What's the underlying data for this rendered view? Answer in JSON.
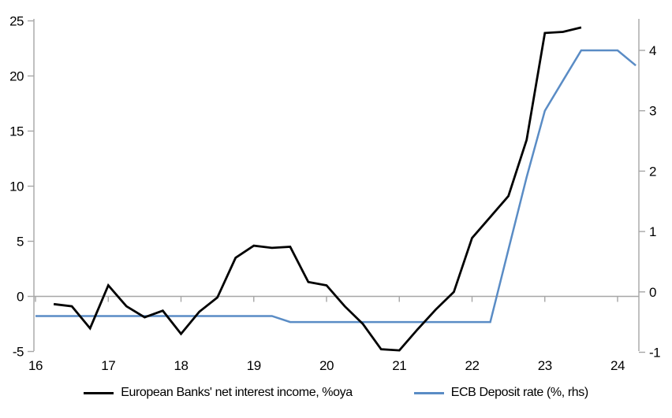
{
  "chart_data": {
    "type": "line",
    "title": "",
    "grid": "zero-line-only",
    "legend_position": "bottom",
    "x_axis": {
      "ticks": [
        16,
        17,
        18,
        19,
        20,
        21,
        22,
        23,
        24
      ],
      "range": [
        16,
        24.3
      ],
      "tick_style": "on-zero-line, labels-low"
    },
    "y_left": {
      "ticks": [
        -5,
        0,
        5,
        10,
        15,
        20,
        25
      ],
      "range": [
        -5,
        25.2
      ]
    },
    "y_right": {
      "ticks": [
        -1,
        0,
        1,
        2,
        3,
        4
      ],
      "range": [
        -1,
        4.5
      ]
    },
    "series": [
      {
        "name": "European Banks' net interest income, %oya",
        "axis": "left",
        "color": "#000000",
        "x": [
          16.25,
          16.5,
          16.75,
          17.0,
          17.25,
          17.5,
          17.75,
          18.0,
          18.25,
          18.5,
          18.75,
          19.0,
          19.25,
          19.5,
          19.75,
          20.0,
          20.25,
          20.5,
          20.75,
          21.0,
          21.25,
          21.5,
          21.75,
          22.0,
          22.25,
          22.5,
          22.75,
          23.0,
          23.25,
          23.5
        ],
        "values": [
          -0.7,
          -0.9,
          -2.9,
          1.0,
          -0.9,
          -1.9,
          -1.3,
          -3.4,
          -1.4,
          -0.1,
          3.5,
          4.6,
          4.4,
          4.5,
          1.3,
          1.0,
          -0.9,
          -2.5,
          -4.8,
          -4.9,
          -3.0,
          -1.2,
          0.4,
          5.3,
          7.2,
          9.1,
          14.2,
          23.9,
          24.0,
          24.4
        ]
      },
      {
        "name": "ECB Deposit rate (%, rhs)",
        "axis": "right",
        "color": "#5A8CC5",
        "x": [
          16.0,
          16.25,
          16.5,
          16.75,
          17.0,
          17.25,
          17.5,
          17.75,
          18.0,
          18.25,
          18.5,
          18.75,
          19.0,
          19.25,
          19.5,
          19.75,
          20.0,
          20.25,
          20.5,
          20.75,
          21.0,
          21.25,
          21.5,
          21.75,
          22.0,
          22.25,
          22.5,
          22.75,
          23.0,
          23.25,
          23.5,
          23.75,
          24.0,
          24.25
        ],
        "values": [
          -0.4,
          -0.4,
          -0.4,
          -0.4,
          -0.4,
          -0.4,
          -0.4,
          -0.4,
          -0.4,
          -0.4,
          -0.4,
          -0.4,
          -0.4,
          -0.4,
          -0.5,
          -0.5,
          -0.5,
          -0.5,
          -0.5,
          -0.5,
          -0.5,
          -0.5,
          -0.5,
          -0.5,
          -0.5,
          -0.5,
          0.7,
          1.9,
          3.0,
          3.5,
          4.0,
          4.0,
          4.0,
          3.75
        ]
      }
    ]
  },
  "colors": {
    "background": "#FFFFFF",
    "axis": "#A6A6A6",
    "nii_line": "#000000",
    "deposit_line": "#5A8CC5",
    "text": "#000000"
  }
}
